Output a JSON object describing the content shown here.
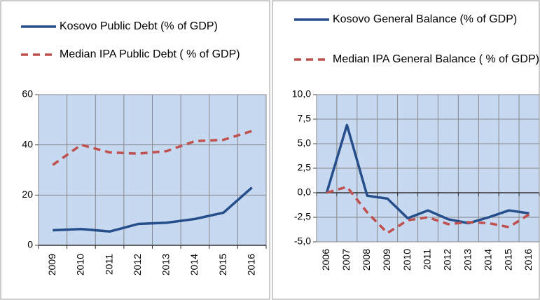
{
  "chart_data": [
    {
      "type": "line",
      "categories": [
        "2009",
        "2010",
        "2011",
        "2012",
        "2013",
        "2014",
        "2015",
        "2016"
      ],
      "series": [
        {
          "name": "Kosovo Public Debt (% of GDP)",
          "color": "#254e8a",
          "dash": false,
          "values": [
            6,
            6.5,
            5.5,
            8.5,
            9,
            10.5,
            13,
            23
          ]
        },
        {
          "name": "Median IPA Public  Debt ( % of GDP)",
          "color": "#c0504d",
          "dash": true,
          "values": [
            32,
            40,
            37,
            36.5,
            37.5,
            41.5,
            42,
            45.5
          ]
        }
      ],
      "ylim": [
        0,
        60
      ],
      "yticks": [
        0,
        20,
        40,
        60
      ],
      "grid": true
    },
    {
      "type": "line",
      "categories": [
        "2006",
        "2007",
        "2008",
        "2009",
        "2010",
        "2011",
        "2012",
        "2013",
        "2014",
        "2015",
        "2016"
      ],
      "series": [
        {
          "name": "Kosovo General Balance (% of GDP)",
          "color": "#254e8a",
          "dash": false,
          "values": [
            0,
            6.9,
            -0.3,
            -0.6,
            -2.6,
            -1.8,
            -2.7,
            -3.1,
            -2.5,
            -1.8,
            -2.1
          ]
        },
        {
          "name": "Median IPA General Balance ( % of GDP)",
          "color": "#c0504d",
          "dash": true,
          "values": [
            0,
            0.6,
            -2.0,
            -4.1,
            -2.8,
            -2.5,
            -3.2,
            -3.0,
            -3.1,
            -3.5,
            -2.2
          ]
        }
      ],
      "ylim": [
        -5,
        10
      ],
      "yticks": [
        {
          "value": -5,
          "label": "-5,0"
        },
        {
          "value": -2.5,
          "label": "-2,5"
        },
        {
          "value": 0,
          "label": "0,0"
        },
        {
          "value": 2.5,
          "label": "2,5"
        },
        {
          "value": 5,
          "label": "5,0"
        },
        {
          "value": 7.5,
          "label": "7,5"
        },
        {
          "value": 10,
          "label": "10,0"
        }
      ],
      "grid": true
    }
  ]
}
